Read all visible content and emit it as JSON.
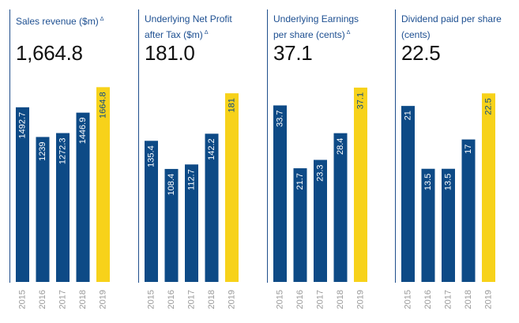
{
  "chart_data": [
    {
      "type": "bar",
      "title": "Sales revenue ($m)",
      "title_mark": "Δ",
      "headline": "1,664.8",
      "categories": [
        "2015",
        "2016",
        "2017",
        "2018",
        "2019"
      ],
      "values": [
        1492.7,
        1239,
        1272.3,
        1446.9,
        1664.8
      ],
      "value_labels": [
        "1492.7",
        "1239",
        "1272.3",
        "1446.9",
        "1664.8"
      ],
      "ylim": [
        0,
        1755
      ],
      "bar_colors": [
        "#0d4a86",
        "#0d4a86",
        "#0d4a86",
        "#0d4a86",
        "#f7d21a"
      ],
      "label_colors": [
        "#ffffff",
        "#ffffff",
        "#ffffff",
        "#ffffff",
        "#0d4a86"
      ],
      "grid": false
    },
    {
      "type": "bar",
      "title": "Underlying Net Profit after Tax ($m)",
      "title_mark": "Δ",
      "headline": "181.0",
      "categories": [
        "2015",
        "2016",
        "2017",
        "2018",
        "2019"
      ],
      "values": [
        135.4,
        108.4,
        112.7,
        142.2,
        181
      ],
      "value_labels": [
        "135.4",
        "108.4",
        "112.7",
        "142.2",
        "181"
      ],
      "ylim": [
        0,
        197
      ],
      "bar_colors": [
        "#0d4a86",
        "#0d4a86",
        "#0d4a86",
        "#0d4a86",
        "#f7d21a"
      ],
      "label_colors": [
        "#ffffff",
        "#ffffff",
        "#ffffff",
        "#ffffff",
        "#0d4a86"
      ],
      "grid": false
    },
    {
      "type": "bar",
      "title": "Underlying Earnings per share (cents)",
      "title_mark": "Δ",
      "headline": "37.1",
      "categories": [
        "2015",
        "2016",
        "2017",
        "2018",
        "2019"
      ],
      "values": [
        33.7,
        21.7,
        23.3,
        28.4,
        37.1
      ],
      "value_labels": [
        "33.7",
        "21.7",
        "23.3",
        "28.4",
        "37.1"
      ],
      "ylim": [
        0,
        39.2
      ],
      "bar_colors": [
        "#0d4a86",
        "#0d4a86",
        "#0d4a86",
        "#0d4a86",
        "#f7d21a"
      ],
      "label_colors": [
        "#ffffff",
        "#ffffff",
        "#ffffff",
        "#ffffff",
        "#0d4a86"
      ],
      "grid": false
    },
    {
      "type": "bar",
      "title": "Dividend paid per share (cents)",
      "title_mark": "",
      "headline": "22.5",
      "categories": [
        "2015",
        "2016",
        "2017",
        "2018",
        "2019"
      ],
      "values": [
        21,
        13.5,
        13.5,
        17,
        22.5
      ],
      "value_labels": [
        "21",
        "13.5",
        "13.5",
        "17",
        "22.5"
      ],
      "ylim": [
        0,
        24.5
      ],
      "bar_colors": [
        "#0d4a86",
        "#0d4a86",
        "#0d4a86",
        "#0d4a86",
        "#f7d21a"
      ],
      "label_colors": [
        "#ffffff",
        "#ffffff",
        "#ffffff",
        "#ffffff",
        "#0d4a86"
      ],
      "grid": false
    }
  ]
}
